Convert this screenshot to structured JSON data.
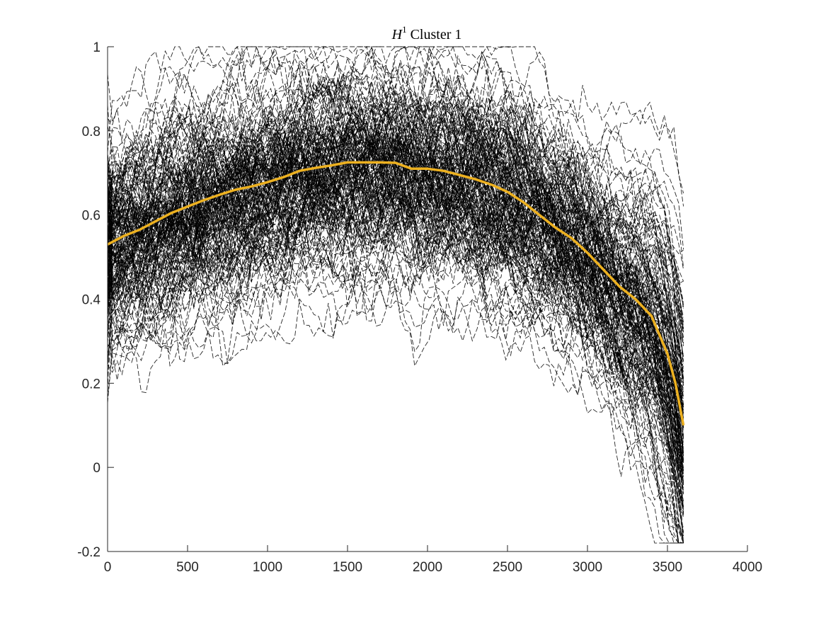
{
  "chart_data": {
    "type": "line",
    "title_math": "H",
    "title_superscript": "1",
    "title_rest": " Cluster 1",
    "xlim": [
      0,
      4000
    ],
    "ylim": [
      -0.2,
      1
    ],
    "x_ticks": [
      0,
      500,
      1000,
      1500,
      2000,
      2500,
      3000,
      3500,
      4000
    ],
    "y_ticks": [
      -0.2,
      0,
      0.2,
      0.4,
      0.6,
      0.8,
      1
    ],
    "x_tick_labels": [
      "0",
      "500",
      "1000",
      "1500",
      "2000",
      "2500",
      "3000",
      "3500",
      "4000"
    ],
    "y_tick_labels": [
      "-0.2",
      "0",
      "0.2",
      "0.4",
      "0.6",
      "0.8",
      "1"
    ],
    "grid": false,
    "legend": "none",
    "mean_series": {
      "color": "#EDB120",
      "style": "solid",
      "x": [
        0,
        100,
        200,
        300,
        400,
        500,
        600,
        700,
        800,
        900,
        1000,
        1100,
        1200,
        1300,
        1400,
        1500,
        1600,
        1700,
        1800,
        1900,
        2000,
        2100,
        2200,
        2300,
        2400,
        2500,
        2600,
        2700,
        2800,
        2900,
        3000,
        3100,
        3200,
        3300,
        3400,
        3500,
        3550,
        3600
      ],
      "y": [
        0.53,
        0.55,
        0.565,
        0.585,
        0.605,
        0.62,
        0.635,
        0.648,
        0.66,
        0.668,
        0.678,
        0.69,
        0.705,
        0.712,
        0.718,
        0.725,
        0.725,
        0.725,
        0.724,
        0.71,
        0.71,
        0.705,
        0.695,
        0.685,
        0.672,
        0.655,
        0.63,
        0.6,
        0.57,
        0.545,
        0.51,
        0.47,
        0.43,
        0.4,
        0.36,
        0.27,
        0.2,
        0.1
      ]
    },
    "sample_curves": {
      "color": "#000000",
      "style": "dashed",
      "count": 180,
      "x_range": [
        0,
        3600
      ]
    }
  }
}
